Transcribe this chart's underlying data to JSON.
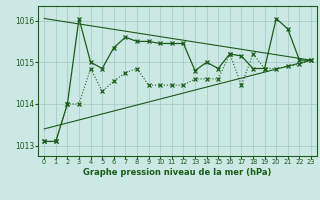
{
  "title": "Graphe pression niveau de la mer (hPa)",
  "background_color": "#cce8e4",
  "grid_color": "#aacccc",
  "line_color": "#1a5c1a",
  "xlim": [
    -0.5,
    23.5
  ],
  "ylim": [
    1012.75,
    1016.35
  ],
  "yticks": [
    1013,
    1014,
    1015,
    1016
  ],
  "xticks": [
    0,
    1,
    2,
    3,
    4,
    5,
    6,
    7,
    8,
    9,
    10,
    11,
    12,
    13,
    14,
    15,
    16,
    17,
    18,
    19,
    20,
    21,
    22,
    23
  ],
  "series1_x": [
    0,
    1,
    2,
    3,
    4,
    5,
    6,
    7,
    8,
    9,
    10,
    11,
    12,
    13,
    14,
    15,
    16,
    17,
    18,
    19,
    20,
    21,
    22,
    23
  ],
  "series1_y": [
    1013.1,
    1013.1,
    1014.0,
    1016.05,
    1015.0,
    1014.85,
    1015.35,
    1015.6,
    1015.5,
    1015.5,
    1015.45,
    1015.45,
    1015.45,
    1014.8,
    1015.0,
    1014.85,
    1015.2,
    1015.15,
    1014.85,
    1014.85,
    1016.05,
    1015.8,
    1015.05,
    1015.05
  ],
  "series2_x": [
    0,
    1,
    2,
    3,
    4,
    5,
    6,
    7,
    8,
    9,
    10,
    11,
    12,
    13,
    14,
    15,
    16,
    17,
    18,
    19,
    20,
    21,
    22,
    23
  ],
  "series2_y": [
    1013.1,
    1013.1,
    1014.0,
    1014.0,
    1014.85,
    1014.3,
    1014.55,
    1014.75,
    1014.85,
    1014.45,
    1014.45,
    1014.45,
    1014.45,
    1014.6,
    1014.6,
    1014.6,
    1015.2,
    1014.45,
    1015.2,
    1014.85,
    1014.85,
    1014.9,
    1014.95,
    1015.05
  ],
  "trend1_x": [
    0,
    23
  ],
  "trend1_y": [
    1016.05,
    1015.05
  ],
  "trend2_x": [
    0,
    23
  ],
  "trend2_y": [
    1013.4,
    1015.05
  ]
}
